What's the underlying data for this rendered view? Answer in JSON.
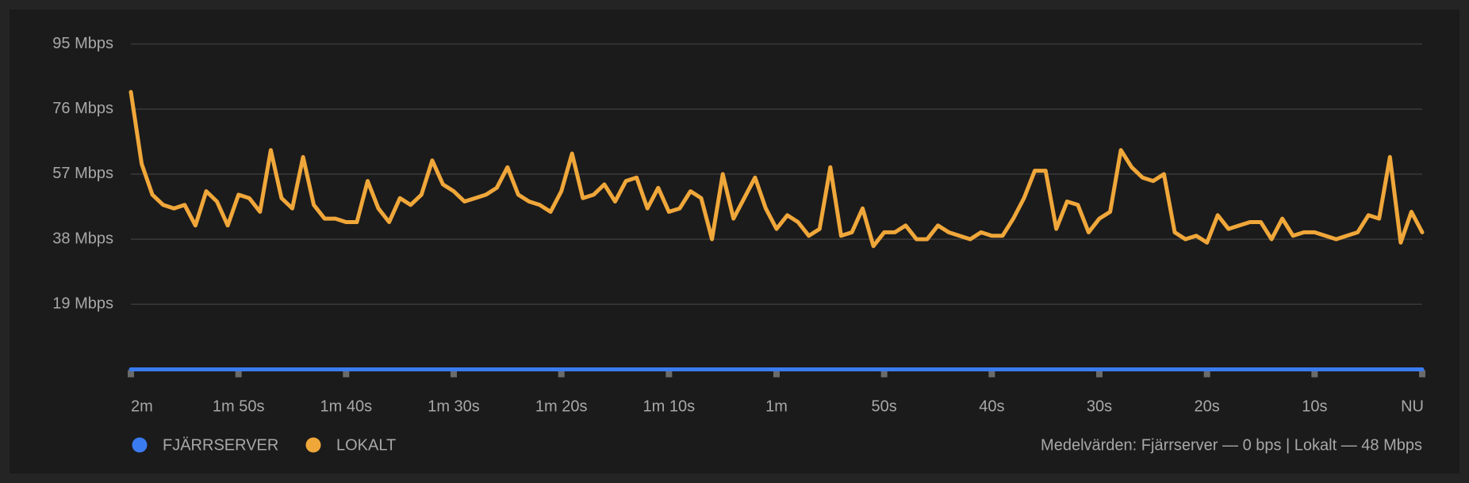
{
  "chart_data": {
    "type": "line",
    "x": [
      -120,
      -119,
      -118,
      -117,
      -116,
      -115,
      -114,
      -113,
      -112,
      -111,
      -110,
      -109,
      -108,
      -107,
      -106,
      -105,
      -104,
      -103,
      -102,
      -101,
      -100,
      -99,
      -98,
      -97,
      -96,
      -95,
      -94,
      -93,
      -92,
      -91,
      -90,
      -89,
      -88,
      -87,
      -86,
      -85,
      -84,
      -83,
      -82,
      -81,
      -80,
      -79,
      -78,
      -77,
      -76,
      -75,
      -74,
      -73,
      -72,
      -71,
      -70,
      -69,
      -68,
      -67,
      -66,
      -65,
      -64,
      -63,
      -62,
      -61,
      -60,
      -59,
      -58,
      -57,
      -56,
      -55,
      -54,
      -53,
      -52,
      -51,
      -50,
      -49,
      -48,
      -47,
      -46,
      -45,
      -44,
      -43,
      -42,
      -41,
      -40,
      -39,
      -38,
      -37,
      -36,
      -35,
      -34,
      -33,
      -32,
      -31,
      -30,
      -29,
      -28,
      -27,
      -26,
      -25,
      -24,
      -23,
      -22,
      -21,
      -20,
      -19,
      -18,
      -17,
      -16,
      -15,
      -14,
      -13,
      -12,
      -11,
      -10,
      -9,
      -8,
      -7,
      -6,
      -5,
      -4,
      -3,
      -2,
      -1,
      0
    ],
    "series": [
      {
        "name": "FJÄRRSERVER",
        "color": "#3b7bf0",
        "values": [
          0,
          0,
          0,
          0,
          0,
          0,
          0,
          0,
          0,
          0,
          0,
          0,
          0,
          0,
          0,
          0,
          0,
          0,
          0,
          0,
          0,
          0,
          0,
          0,
          0,
          0,
          0,
          0,
          0,
          0,
          0,
          0,
          0,
          0,
          0,
          0,
          0,
          0,
          0,
          0,
          0,
          0,
          0,
          0,
          0,
          0,
          0,
          0,
          0,
          0,
          0,
          0,
          0,
          0,
          0,
          0,
          0,
          0,
          0,
          0,
          0,
          0,
          0,
          0,
          0,
          0,
          0,
          0,
          0,
          0,
          0,
          0,
          0,
          0,
          0,
          0,
          0,
          0,
          0,
          0,
          0,
          0,
          0,
          0,
          0,
          0,
          0,
          0,
          0,
          0,
          0,
          0,
          0,
          0,
          0,
          0,
          0,
          0,
          0,
          0,
          0,
          0,
          0,
          0,
          0,
          0,
          0,
          0,
          0,
          0,
          0,
          0,
          0,
          0,
          0,
          0,
          0,
          0,
          0,
          0,
          0
        ]
      },
      {
        "name": "LOKALT",
        "color": "#f0a73a",
        "values": [
          81,
          60,
          51,
          48,
          47,
          48,
          42,
          52,
          49,
          42,
          51,
          50,
          46,
          64,
          50,
          47,
          62,
          48,
          44,
          44,
          43,
          43,
          55,
          47,
          43,
          50,
          48,
          51,
          61,
          54,
          52,
          49,
          50,
          51,
          53,
          59,
          51,
          49,
          48,
          46,
          52,
          63,
          50,
          51,
          54,
          49,
          55,
          56,
          47,
          53,
          46,
          47,
          52,
          50,
          38,
          57,
          44,
          50,
          56,
          47,
          41,
          45,
          43,
          39,
          41,
          59,
          39,
          40,
          47,
          36,
          40,
          40,
          42,
          38,
          38,
          42,
          40,
          39,
          38,
          40,
          39,
          39,
          44,
          50,
          58,
          58,
          41,
          49,
          48,
          40,
          44,
          46,
          64,
          59,
          56,
          55,
          57,
          40,
          38,
          39,
          37,
          45,
          41,
          42,
          43,
          43,
          38,
          44,
          39,
          40,
          40,
          39,
          38,
          39,
          40,
          45,
          44,
          62,
          37,
          46,
          40
        ]
      }
    ],
    "xlim": [
      -120,
      0
    ],
    "xticks": [
      {
        "value": -120,
        "label": "2m"
      },
      {
        "value": -110,
        "label": "1m 50s"
      },
      {
        "value": -100,
        "label": "1m 40s"
      },
      {
        "value": -90,
        "label": "1m 30s"
      },
      {
        "value": -80,
        "label": "1m 20s"
      },
      {
        "value": -70,
        "label": "1m 10s"
      },
      {
        "value": -60,
        "label": "1m"
      },
      {
        "value": -50,
        "label": "50s"
      },
      {
        "value": -40,
        "label": "40s"
      },
      {
        "value": -30,
        "label": "30s"
      },
      {
        "value": -20,
        "label": "20s"
      },
      {
        "value": -10,
        "label": "10s"
      },
      {
        "value": 0,
        "label": "NU"
      }
    ],
    "ylim": [
      0,
      95
    ],
    "yticks": [
      {
        "value": 19,
        "label": "19 Mbps"
      },
      {
        "value": 38,
        "label": "38 Mbps"
      },
      {
        "value": 57,
        "label": "57 Mbps"
      },
      {
        "value": 76,
        "label": "76 Mbps"
      },
      {
        "value": 95,
        "label": "95 Mbps"
      }
    ],
    "grid": true,
    "legend": "bottom-left",
    "annotation": "Medelvärden: Fjärrserver — 0 bps | Lokalt — 48 Mbps"
  }
}
